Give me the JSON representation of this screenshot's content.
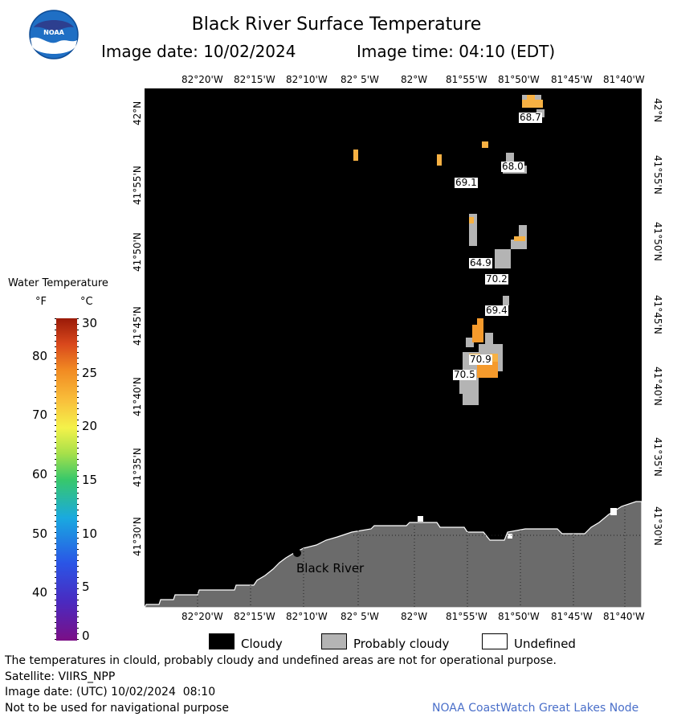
{
  "header": {
    "logo_text": "NOAA",
    "title": "Black River Surface Temperature",
    "image_date_label": "Image date: 10/02/2024",
    "image_time_label": "Image time: 04:10 (EDT)"
  },
  "map": {
    "lon_ticks": [
      "82°20'W",
      "82°15'W",
      "82°10'W",
      "82° 5'W",
      "82°W",
      "81°55'W",
      "81°50'W",
      "81°45'W",
      "81°40'W"
    ],
    "lat_ticks": [
      "42°N",
      "41°55'N",
      "41°50'N",
      "41°45'N",
      "41°40'N",
      "41°35'N",
      "41°30'N"
    ],
    "place_label": "Black River",
    "temp_labels": [
      "68.7",
      "68.0",
      "69.1",
      "64.9",
      "70.2",
      "69.4",
      "70.9",
      "70.5"
    ],
    "colors": {
      "water_cloud": "#000000",
      "land": "#6b6b6b",
      "probably_cloudy": "#b4b4b4",
      "sst_warm": "#f7b143",
      "sst_orange": "#f59a2c"
    }
  },
  "colorbar": {
    "title": "Water Temperature",
    "unit_f": "°F",
    "unit_c": "°C",
    "f_ticks": [
      "80",
      "70",
      "60",
      "50",
      "40"
    ],
    "c_ticks": [
      "30",
      "25",
      "20",
      "15",
      "10",
      "5",
      "0"
    ]
  },
  "legend": {
    "cloudy": "Cloudy",
    "probably_cloudy": "Probably cloudy",
    "undefined": "Undefined"
  },
  "footer": {
    "disclaimer": "The temperatures in clould, probably cloudy and undefined areas are not for operational purpose.",
    "satellite": "Satellite: VIIRS_NPP",
    "utc_date": "Image date: (UTC) 10/02/2024  08:10",
    "navigation": "Not to be used for navigational purpose",
    "credit": "NOAA CoastWatch Great Lakes Node"
  }
}
